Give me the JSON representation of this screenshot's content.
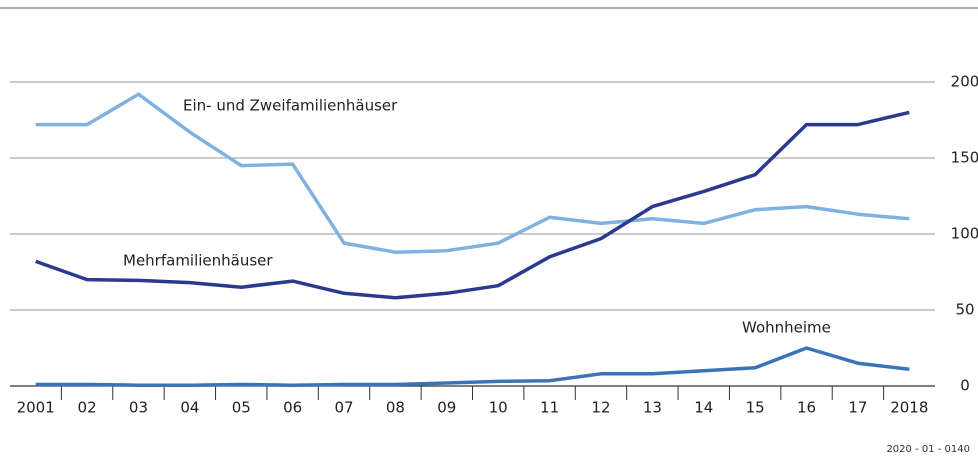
{
  "chart_data": {
    "type": "line",
    "categories": [
      "2001",
      "02",
      "03",
      "04",
      "05",
      "06",
      "07",
      "08",
      "09",
      "10",
      "11",
      "12",
      "13",
      "14",
      "15",
      "16",
      "17",
      "2018"
    ],
    "series": [
      {
        "name": "Ein- und Zweifamilienhäuser",
        "color": "#7fb2e0",
        "values": [
          172,
          172,
          192,
          167,
          145,
          146,
          94,
          88,
          89,
          94,
          111,
          107,
          110,
          107,
          116,
          118,
          113,
          110
        ]
      },
      {
        "name": "Mehrfamilienhäuser",
        "color": "#2b3a8f",
        "values": [
          82,
          70,
          69.5,
          68,
          65,
          69,
          61,
          58,
          61,
          66,
          85,
          97,
          118,
          128,
          139,
          172,
          172,
          180
        ]
      },
      {
        "name": "Wohnheime",
        "color": "#3b73b9",
        "values": [
          1,
          1,
          0.5,
          0.5,
          1,
          0.5,
          1,
          1,
          2,
          3,
          3.5,
          8,
          8,
          10,
          12,
          25,
          15,
          11
        ]
      }
    ],
    "ylim": [
      0,
      200
    ],
    "yticks": [
      0,
      50,
      100,
      150,
      200
    ],
    "grid": true,
    "footnote": "2020 - 01 - 0140"
  }
}
